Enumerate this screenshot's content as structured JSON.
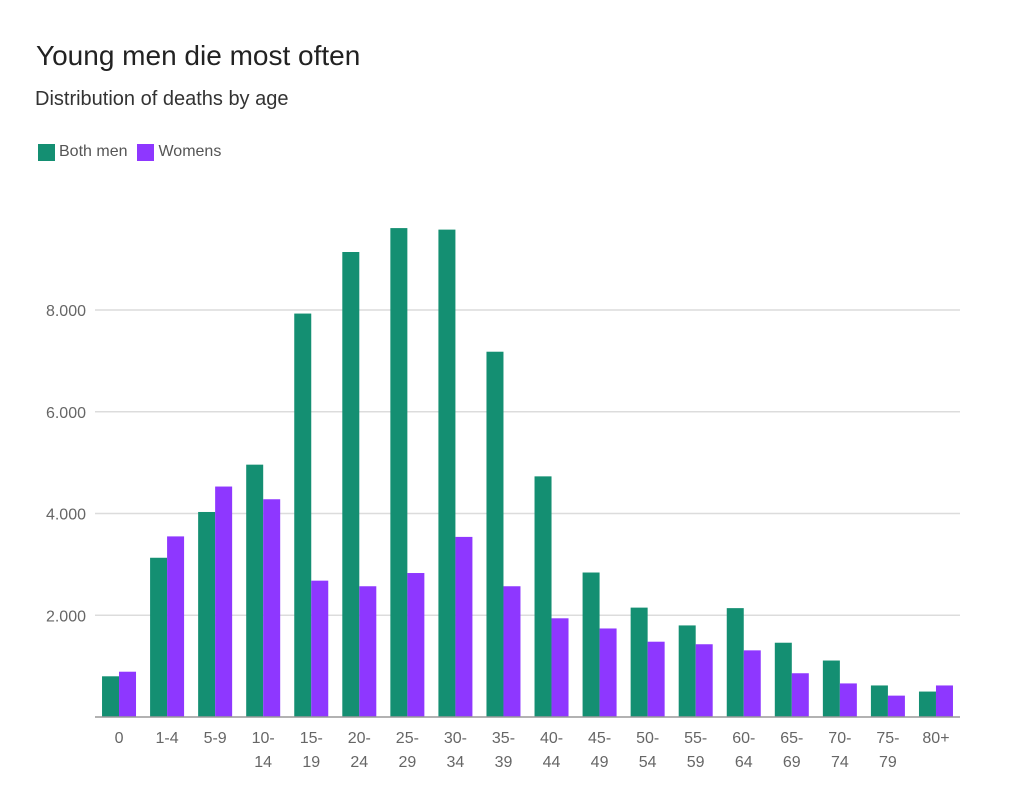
{
  "chart_data": {
    "type": "bar",
    "title": "Young men die most often",
    "subtitle": "Distribution of deaths by age",
    "xlabel": "",
    "ylabel": "",
    "ylim": [
      0,
      10000
    ],
    "yticks": [
      2000,
      4000,
      6000,
      8000
    ],
    "ytick_labels": [
      "2.000",
      "4.000",
      "6.000",
      "8.000"
    ],
    "grid": true,
    "legend_position": "top-left",
    "categories": [
      "0",
      "1-4",
      "5-9",
      "10-14",
      "15-19",
      "20-24",
      "25-29",
      "30-34",
      "35-39",
      "40-44",
      "45-49",
      "50-54",
      "55-59",
      "60-64",
      "65-69",
      "70-74",
      "75-79",
      "80+"
    ],
    "category_lines": [
      [
        "0"
      ],
      [
        "1-4"
      ],
      [
        "5-9"
      ],
      [
        "10-",
        "14"
      ],
      [
        "15-",
        "19"
      ],
      [
        "20-",
        "24"
      ],
      [
        "25-",
        "29"
      ],
      [
        "30-",
        "34"
      ],
      [
        "35-",
        "39"
      ],
      [
        "40-",
        "44"
      ],
      [
        "45-",
        "49"
      ],
      [
        "50-",
        "54"
      ],
      [
        "55-",
        "59"
      ],
      [
        "60-",
        "64"
      ],
      [
        "65-",
        "69"
      ],
      [
        "70-",
        "74"
      ],
      [
        "75-",
        "79"
      ],
      [
        "80+"
      ]
    ],
    "series": [
      {
        "name": "Both men",
        "color": "#148f72",
        "values": [
          800,
          3130,
          4030,
          4960,
          7930,
          9140,
          9610,
          9580,
          7180,
          4730,
          2840,
          2150,
          1800,
          2140,
          1460,
          1110,
          620,
          500
        ]
      },
      {
        "name": "Womens",
        "color": "#8e37ff",
        "values": [
          890,
          3550,
          4530,
          4280,
          2680,
          2570,
          2830,
          3540,
          2570,
          1940,
          1740,
          1480,
          1430,
          1310,
          860,
          660,
          420,
          620
        ]
      }
    ]
  }
}
